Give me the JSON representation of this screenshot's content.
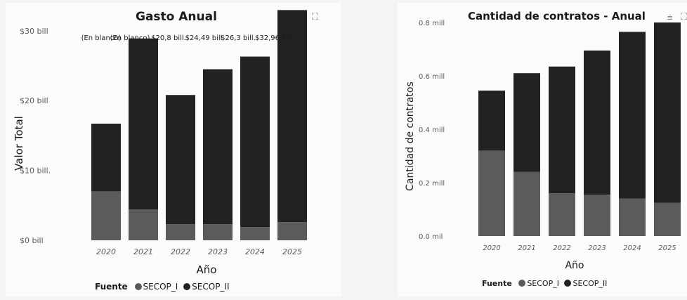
{
  "colors": {
    "secop_i": "#5b5b5b",
    "secop_ii": "#222222",
    "axis_text": "#5a5a5a",
    "title": "#1a1a1a"
  },
  "icons": {
    "filter": "filter-icon",
    "focus": "focus-mode-icon"
  },
  "header_icons": {
    "filter_glyph": "⩧",
    "focus_glyph": "⛶"
  },
  "legend": {
    "title": "Fuente",
    "items": [
      "SECOP_I",
      "SECOP_II"
    ]
  },
  "chart_data": [
    {
      "type": "bar",
      "stacked": true,
      "title": "Gasto Anual",
      "xlabel": "Año",
      "ylabel": "Valor Total",
      "categories": [
        "2020",
        "2021",
        "2022",
        "2023",
        "2024",
        "2025"
      ],
      "series": [
        {
          "name": "SECOP_I",
          "values": [
            7.0,
            4.4,
            2.3,
            2.3,
            1.9,
            2.6
          ]
        },
        {
          "name": "SECOP_II",
          "values": [
            9.7,
            24.5,
            18.5,
            22.19,
            24.4,
            30.36
          ]
        }
      ],
      "yticks": [
        "$0 bill",
        "$10 bill.",
        "$20 bill",
        "$30 bill"
      ],
      "ytick_values": [
        0,
        10,
        20,
        30
      ],
      "ylim": [
        0,
        34
      ],
      "data_labels": [
        "(En blanco)",
        "(En blanco)",
        "$20,8 bill.",
        "$24,49 bill",
        "$26,3 bill.",
        "$32,96 bill."
      ],
      "grid": false,
      "legend_position": "bottom"
    },
    {
      "type": "bar",
      "stacked": true,
      "title": "Cantidad de contratos - Anual",
      "xlabel": "Año",
      "ylabel": "Cantidad de contratos",
      "categories": [
        "2020",
        "2021",
        "2022",
        "2023",
        "2024",
        "2025"
      ],
      "series": [
        {
          "name": "SECOP_I",
          "values": [
            0.32,
            0.24,
            0.16,
            0.155,
            0.14,
            0.125
          ]
        },
        {
          "name": "SECOP_II",
          "values": [
            0.225,
            0.37,
            0.475,
            0.54,
            0.625,
            0.675
          ]
        }
      ],
      "yticks": [
        "0.0 mil",
        "0.2 mill",
        "0.4 mill",
        "0.6 mill",
        "0.8 mill"
      ],
      "ytick_values": [
        0,
        0.2,
        0.4,
        0.6,
        0.8
      ],
      "ylim": [
        0,
        0.85
      ],
      "grid": false,
      "legend_position": "bottom"
    }
  ]
}
